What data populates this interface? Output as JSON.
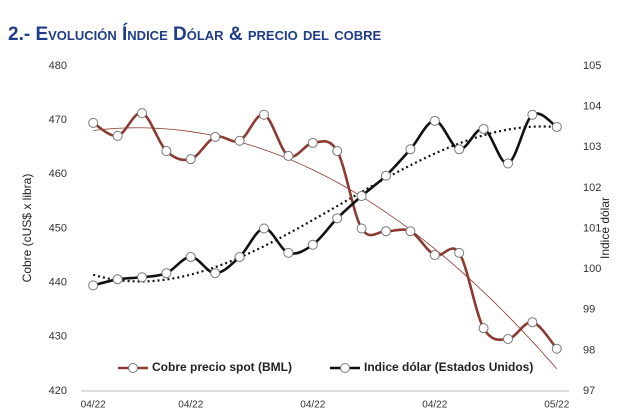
{
  "chart_data": {
    "type": "line",
    "title": "2.- Evolución Índice Dólar & precio del cobre",
    "ylabel": "Cobre (cUS$ x libra)",
    "y2label": "Indice dólar",
    "categories": [
      "04/22",
      null,
      null,
      null,
      "04/22",
      null,
      null,
      null,
      null,
      "04/22",
      null,
      null,
      null,
      null,
      "04/22",
      null,
      null,
      null,
      null,
      "05/22"
    ],
    "series": [
      {
        "name": "Cobre precio spot (BML)",
        "color": "#8b3a2f",
        "axis": "y",
        "values": [
          469.5,
          467.1,
          471.3,
          464.3,
          462.8,
          466.9,
          466.2,
          471,
          463.4,
          465.8,
          464.3,
          450,
          449.5,
          449.5,
          445.1,
          445.5,
          431.6,
          429.6,
          432.7,
          427.8
        ]
      },
      {
        "name": "Indice dólar (Estados Unidos)",
        "color": "#111111",
        "axis": "y2",
        "values": [
          99.6,
          99.75,
          99.8,
          99.9,
          100.3,
          99.9,
          100.3,
          101.0,
          100.4,
          100.6,
          101.25,
          101.8,
          102.3,
          102.95,
          103.65,
          102.95,
          103.45,
          102.6,
          103.8,
          103.5
        ]
      }
    ],
    "ylim": [
      420,
      480
    ],
    "yticks": [
      420,
      430,
      440,
      450,
      460,
      470,
      480
    ],
    "y2lim": [
      97,
      105
    ],
    "y2ticks": [
      97,
      98,
      99,
      100,
      101,
      102,
      103,
      104,
      105
    ],
    "legend": "bottom"
  }
}
